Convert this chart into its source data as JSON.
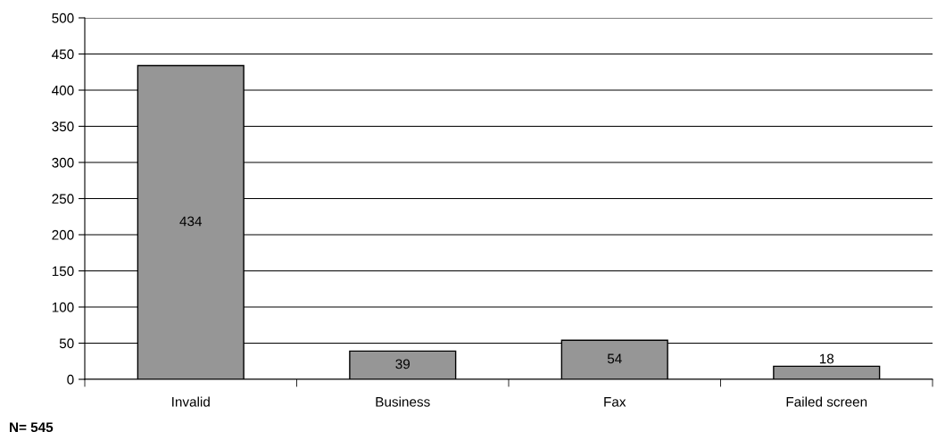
{
  "chart_data": {
    "type": "bar",
    "categories": [
      "Invalid",
      "Business",
      "Fax",
      "Failed screen"
    ],
    "values": [
      434,
      39,
      54,
      18
    ],
    "color": "#969696",
    "ylim": [
      0,
      500
    ],
    "yticks": [
      0,
      50,
      100,
      150,
      200,
      250,
      300,
      350,
      400,
      450,
      500
    ],
    "grid": "y",
    "data_labels": true,
    "annotations": [
      "N= 545"
    ]
  }
}
